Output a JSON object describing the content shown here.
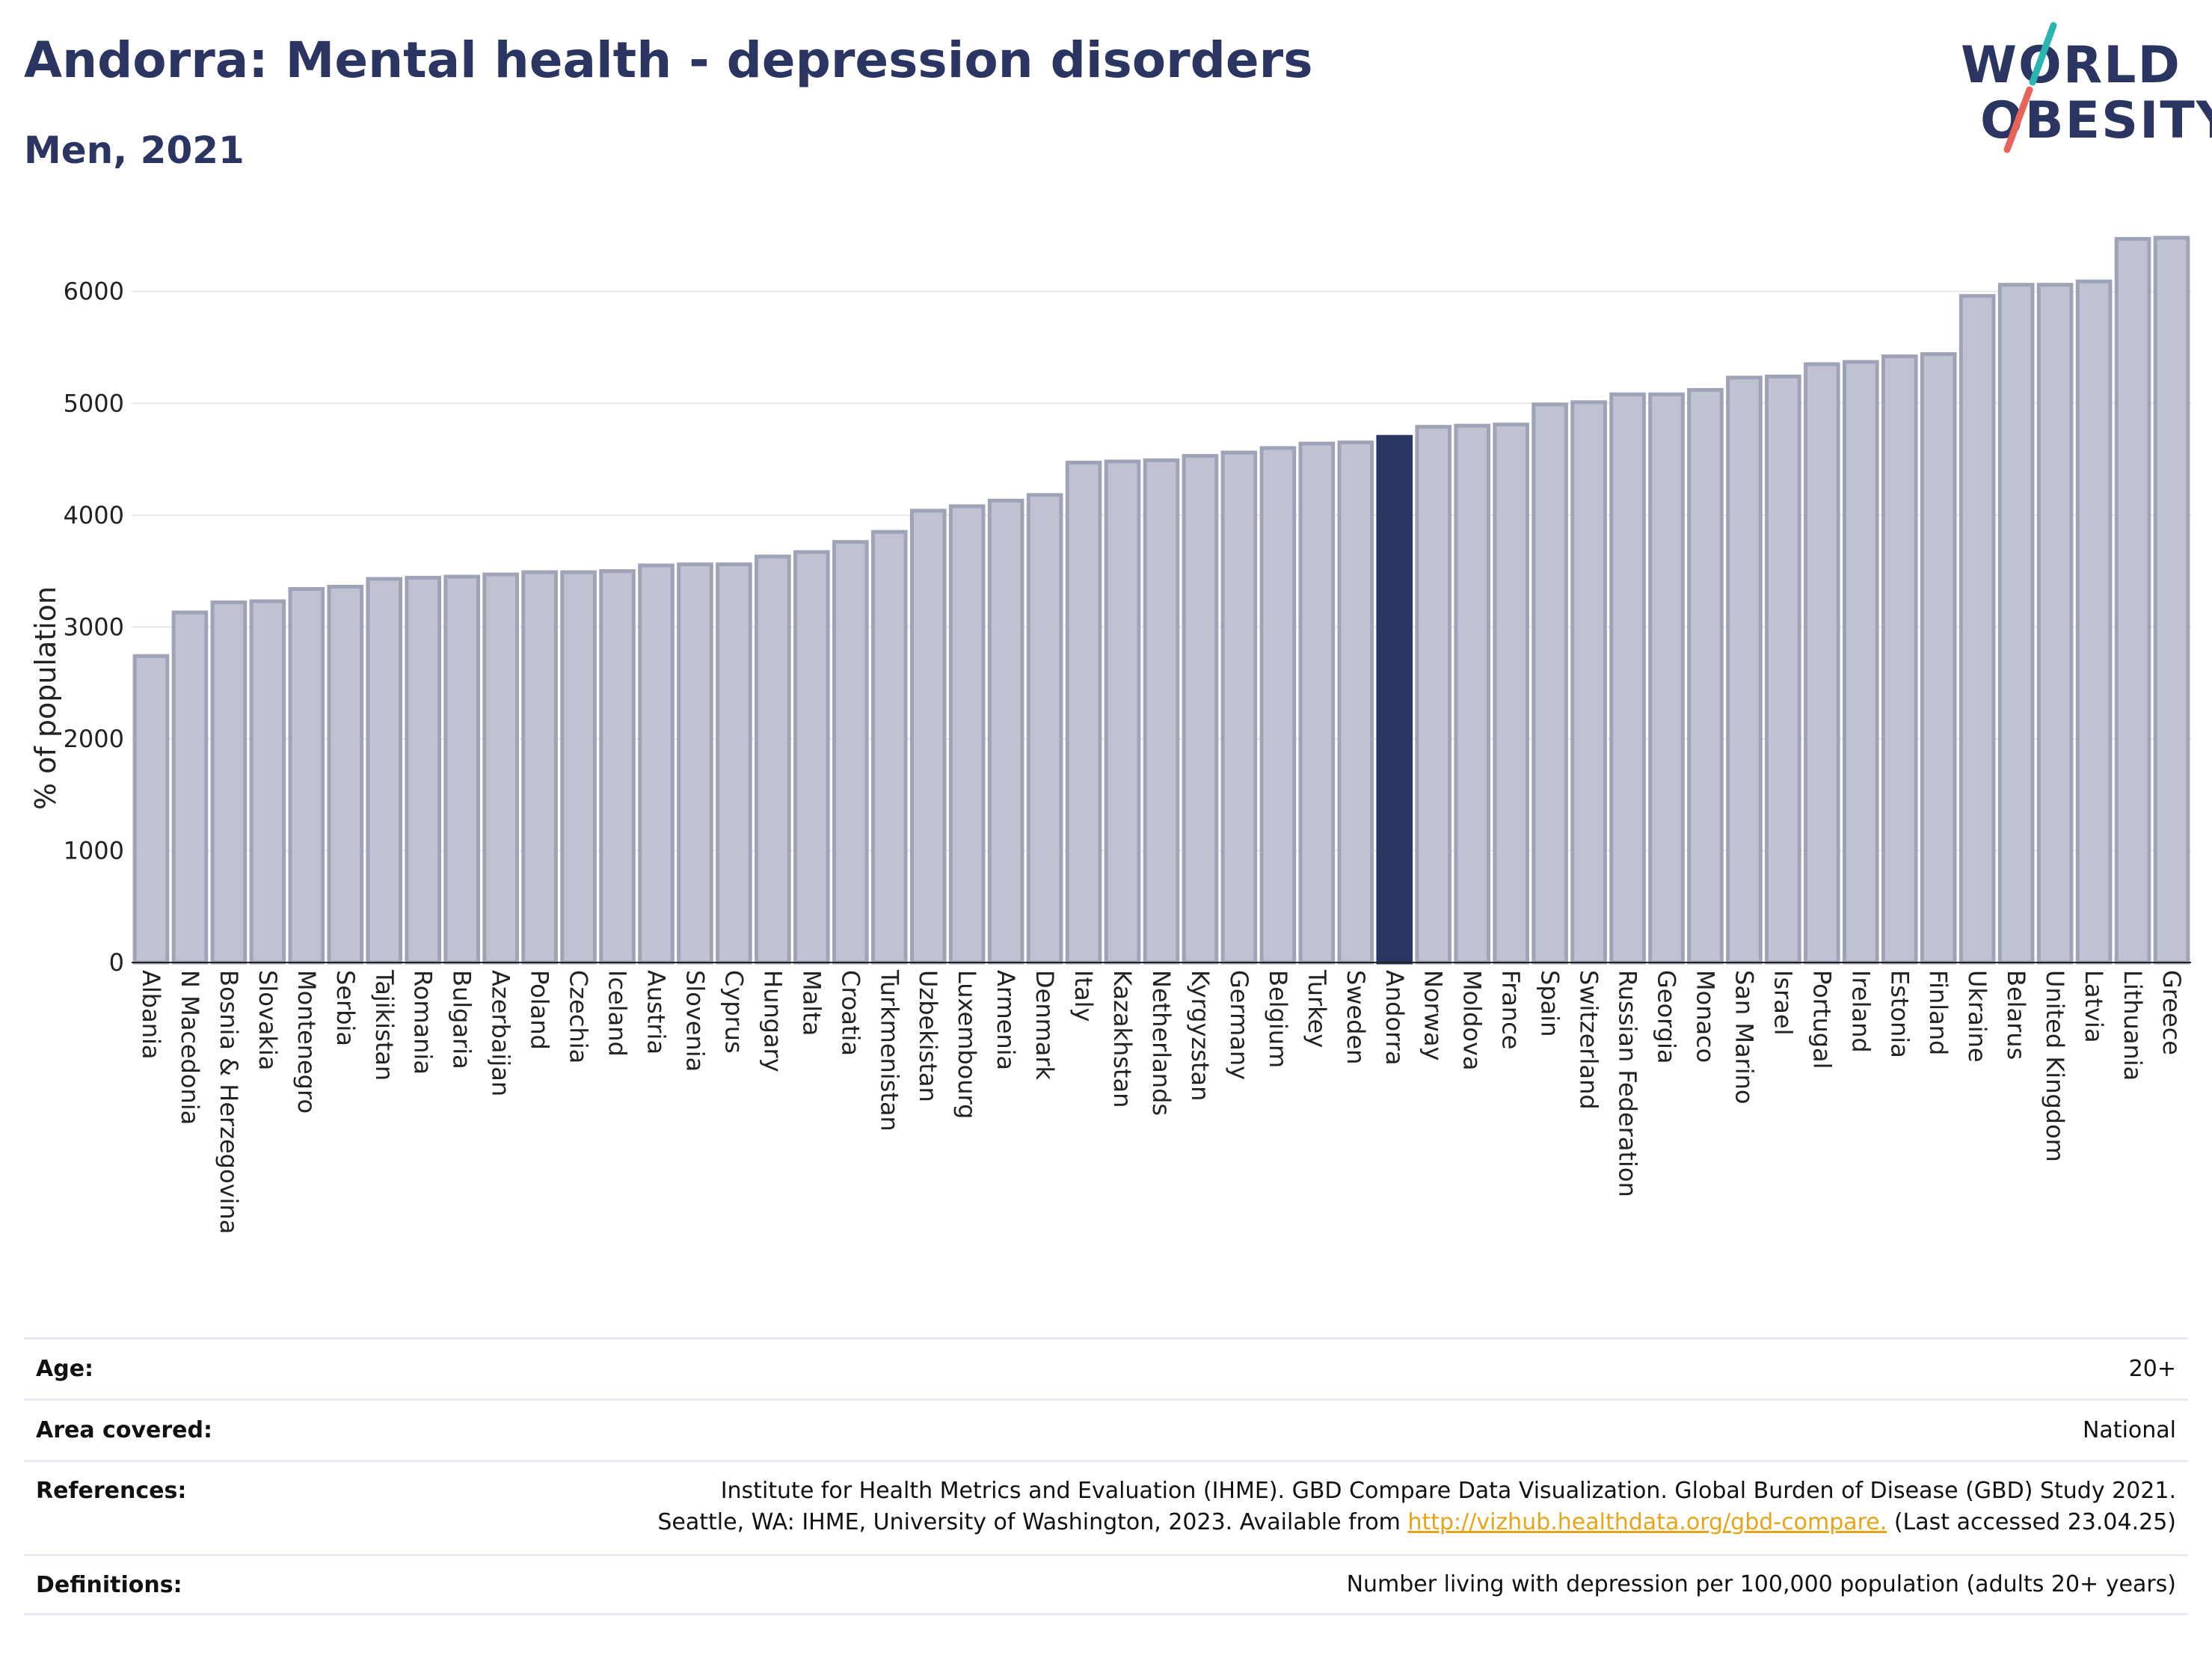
{
  "header": {
    "title": "Andorra: Mental health - depression disorders",
    "subtitle": "Men, 2021"
  },
  "logo": {
    "line1": "WORLD",
    "line2": "OBESITY",
    "slash_colors": [
      "#2bb5b0",
      "#e8635a"
    ]
  },
  "chart_data": {
    "type": "bar",
    "ylabel": "% of population",
    "ylim": [
      0,
      6600
    ],
    "yticks": [
      0,
      1000,
      2000,
      3000,
      4000,
      5000,
      6000
    ],
    "grid": true,
    "highlight": "Andorra",
    "colors": {
      "bar": "#bfc3d1",
      "bar_edge": "#9ea3b8",
      "highlight": "#2a3561"
    },
    "categories": [
      "Albania",
      "N Macedonia",
      "Bosnia & Herzegovina",
      "Slovakia",
      "Montenegro",
      "Serbia",
      "Tajikistan",
      "Romania",
      "Bulgaria",
      "Azerbaijan",
      "Poland",
      "Czechia",
      "Iceland",
      "Austria",
      "Slovenia",
      "Cyprus",
      "Hungary",
      "Malta",
      "Croatia",
      "Turkmenistan",
      "Uzbekistan",
      "Luxembourg",
      "Armenia",
      "Denmark",
      "Italy",
      "Kazakhstan",
      "Netherlands",
      "Kyrgyzstan",
      "Germany",
      "Belgium",
      "Turkey",
      "Sweden",
      "Andorra",
      "Norway",
      "Moldova",
      "France",
      "Spain",
      "Switzerland",
      "Russian Federation",
      "Georgia",
      "Monaco",
      "San Marino",
      "Israel",
      "Portugal",
      "Ireland",
      "Estonia",
      "Finland",
      "Ukraine",
      "Belarus",
      "United Kingdom",
      "Latvia",
      "Lithuania",
      "Greece"
    ],
    "values": [
      2740,
      3130,
      3220,
      3230,
      3340,
      3360,
      3430,
      3440,
      3450,
      3470,
      3490,
      3490,
      3500,
      3550,
      3560,
      3560,
      3630,
      3670,
      3760,
      3850,
      4040,
      4080,
      4130,
      4180,
      4470,
      4480,
      4490,
      4530,
      4560,
      4600,
      4640,
      4650,
      4700,
      4790,
      4800,
      4810,
      4990,
      5010,
      5080,
      5080,
      5120,
      5230,
      5240,
      5350,
      5370,
      5420,
      5440,
      5960,
      6060,
      6060,
      6090,
      6470,
      6480
    ]
  },
  "meta": {
    "age_label": "Age:",
    "age_value": "20+",
    "area_label": "Area covered:",
    "area_value": "National",
    "references_label": "References:",
    "references_line1": "Institute for Health Metrics and Evaluation (IHME). GBD Compare Data Visualization. Global Burden of Disease (GBD) Study 2021.",
    "references_line2_pre": "Seattle, WA: IHME, University of Washington, 2023. Available from ",
    "references_link": "http://vizhub.healthdata.org/gbd-compare.",
    "references_line2_post": " (Last accessed 23.04.25)",
    "definitions_label": "Definitions:",
    "definitions_value": "Number living with depression per 100,000 population (adults 20+ years)"
  }
}
